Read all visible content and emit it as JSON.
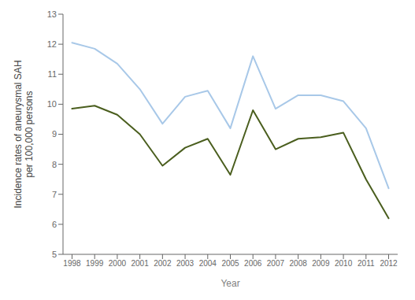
{
  "chart_data": {
    "type": "line",
    "xlabel": "Year",
    "ylabel": "Incidence rates of aneurysmal SAH\nper 100,000 persons",
    "x": [
      1998,
      1999,
      2000,
      2001,
      2002,
      2003,
      2004,
      2005,
      2006,
      2007,
      2008,
      2009,
      2010,
      2011,
      2012
    ],
    "series": [
      {
        "color": "#a8c8e8",
        "values": [
          12.05,
          11.85,
          11.35,
          10.5,
          9.35,
          10.25,
          10.45,
          9.2,
          11.6,
          9.85,
          10.3,
          10.3,
          10.1,
          9.2,
          7.2
        ]
      },
      {
        "color": "#4a5e1e",
        "values": [
          9.85,
          9.95,
          9.65,
          9.0,
          7.95,
          8.55,
          8.85,
          7.65,
          9.8,
          8.5,
          8.85,
          8.9,
          9.05,
          7.5,
          6.2
        ]
      }
    ],
    "xlim": [
      1997.6,
      2012.4
    ],
    "ylim": [
      5,
      13
    ],
    "xticks": [
      1998,
      1999,
      2000,
      2001,
      2002,
      2003,
      2004,
      2005,
      2006,
      2007,
      2008,
      2009,
      2010,
      2011,
      2012
    ],
    "yticks": [
      5,
      6,
      7,
      8,
      9,
      10,
      11,
      12,
      13
    ],
    "grid": false
  }
}
